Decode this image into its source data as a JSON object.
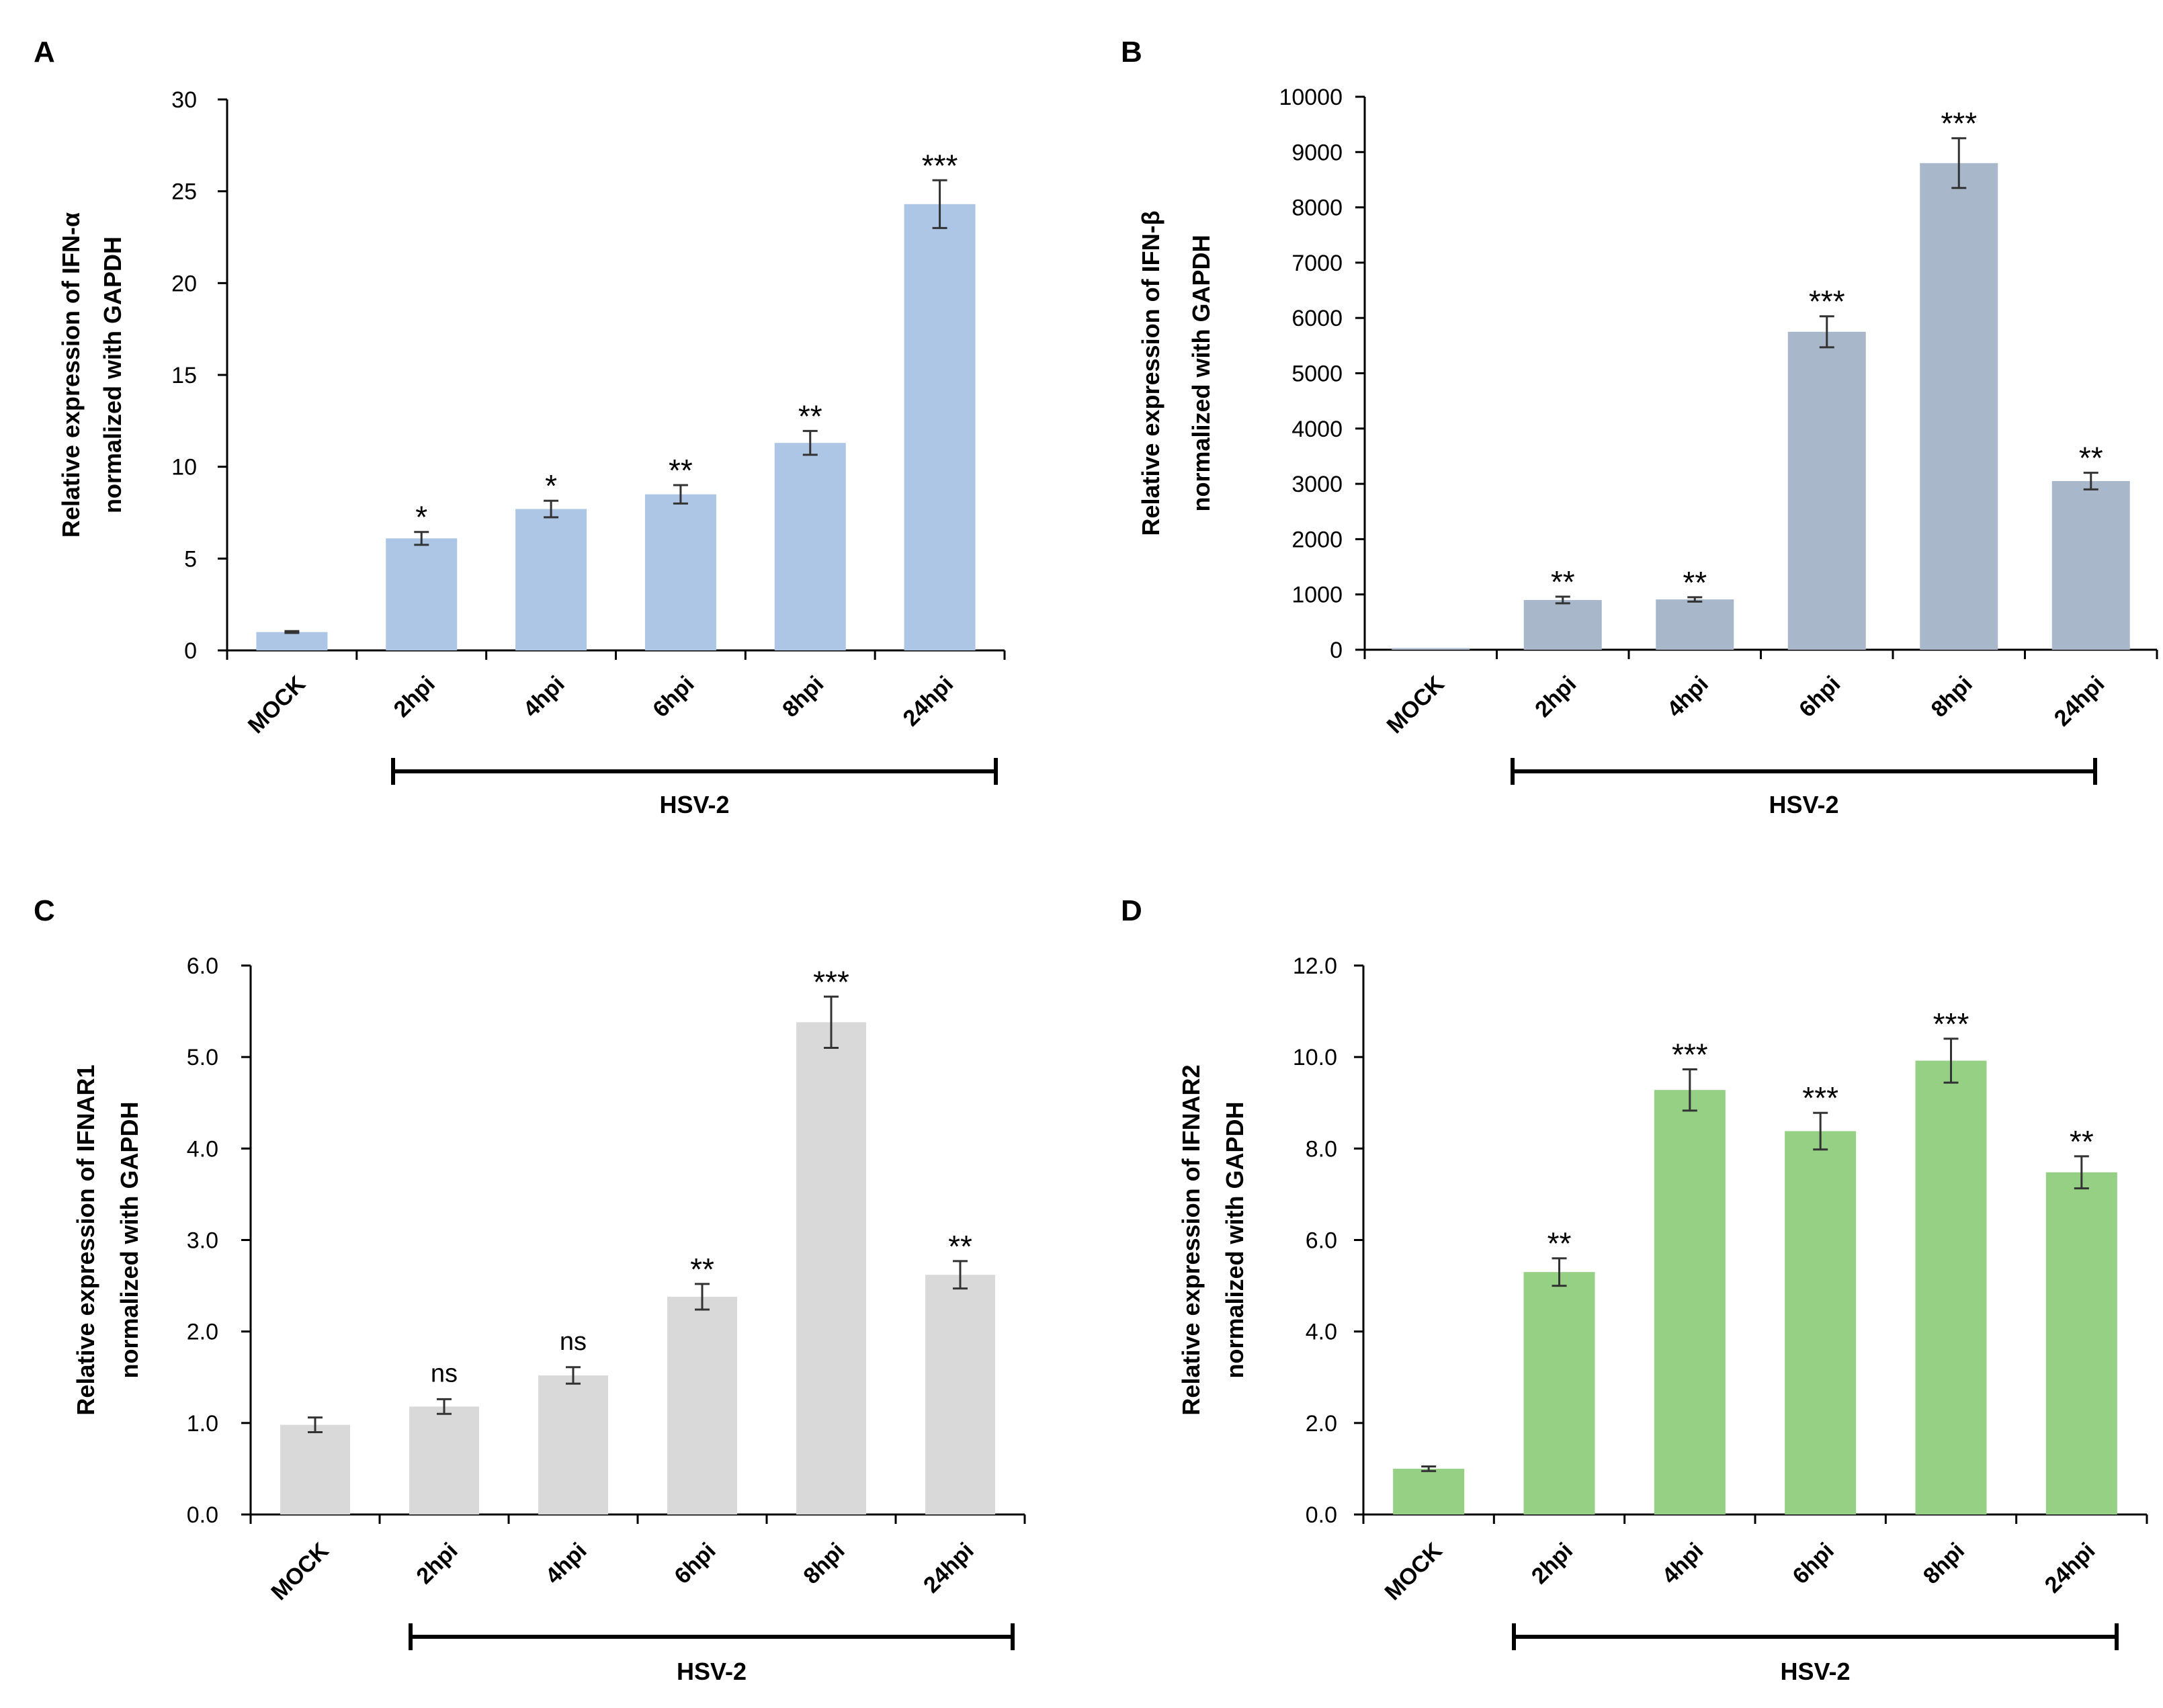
{
  "chart_data": [
    {
      "type": "bar",
      "panel": "A",
      "categories": [
        "MOCK",
        "2hpi",
        "4hpi",
        "6hpi",
        "8hpi",
        "24hpi"
      ],
      "values": [
        1.0,
        6.1,
        7.7,
        8.5,
        11.3,
        24.3
      ],
      "errors": [
        0.05,
        0.35,
        0.45,
        0.5,
        0.65,
        1.3
      ],
      "significance": [
        "",
        "*",
        "*",
        "**",
        "**",
        "***"
      ],
      "ylabel": [
        "Relative expression of IFN-α",
        "normalized with GAPDH"
      ],
      "ylim": [
        0,
        30
      ],
      "yticks": [
        0,
        5,
        10,
        15,
        20,
        25,
        30
      ],
      "ytick_labels": [
        "0",
        "5",
        "10",
        "15",
        "20",
        "25",
        "30"
      ],
      "group_label": "HSV-2",
      "bar_color": "#adc6e6"
    },
    {
      "type": "bar",
      "panel": "B",
      "categories": [
        "MOCK",
        "2hpi",
        "4hpi",
        "6hpi",
        "8hpi",
        "24hpi"
      ],
      "values": [
        30,
        900,
        910,
        5750,
        8800,
        3050
      ],
      "errors": [
        0,
        60,
        40,
        280,
        450,
        150
      ],
      "significance": [
        "",
        "**",
        "**",
        "***",
        "***",
        "**"
      ],
      "ylabel": [
        "Relative expression of IFN-β",
        "normalized with GAPDH"
      ],
      "ylim": [
        0,
        10000
      ],
      "yticks": [
        0,
        1000,
        2000,
        3000,
        4000,
        5000,
        6000,
        7000,
        8000,
        9000,
        10000
      ],
      "ytick_labels": [
        "0",
        "1000",
        "2000",
        "3000",
        "4000",
        "5000",
        "6000",
        "7000",
        "8000",
        "9000",
        "10000"
      ],
      "group_label": "HSV-2",
      "bar_color": "#a8b8ca"
    },
    {
      "type": "bar",
      "panel": "C",
      "categories": [
        "MOCK",
        "2hpi",
        "4hpi",
        "6hpi",
        "8hpi",
        "24hpi"
      ],
      "values": [
        0.98,
        1.18,
        1.52,
        2.38,
        5.38,
        2.62
      ],
      "errors": [
        0.08,
        0.08,
        0.09,
        0.14,
        0.28,
        0.15
      ],
      "significance": [
        "",
        "ns",
        "ns",
        "**",
        "***",
        "**"
      ],
      "ylabel": [
        "Relative expression of IFNAR1",
        "normalized with GAPDH"
      ],
      "ylim": [
        0,
        6
      ],
      "yticks": [
        0,
        1,
        2,
        3,
        4,
        5,
        6
      ],
      "ytick_labels": [
        "0.0",
        "1.0",
        "2.0",
        "3.0",
        "4.0",
        "5.0",
        "6.0"
      ],
      "group_label": "HSV-2",
      "bar_color": "#d9d9d9"
    },
    {
      "type": "bar",
      "panel": "D",
      "categories": [
        "MOCK",
        "2hpi",
        "4hpi",
        "6hpi",
        "8hpi",
        "24hpi"
      ],
      "values": [
        1.0,
        5.3,
        9.28,
        8.38,
        9.92,
        7.48
      ],
      "errors": [
        0.05,
        0.3,
        0.45,
        0.4,
        0.48,
        0.35
      ],
      "significance": [
        "",
        "**",
        "***",
        "***",
        "***",
        "**"
      ],
      "ylabel": [
        "Relative expression of IFNAR2",
        "normalized with GAPDH"
      ],
      "ylim": [
        0,
        12
      ],
      "yticks": [
        0,
        2,
        4,
        6,
        8,
        10,
        12
      ],
      "ytick_labels": [
        "0.0",
        "2.0",
        "4.0",
        "6.0",
        "8.0",
        "10.0",
        "12.0"
      ],
      "group_label": "HSV-2",
      "bar_color": "#95d085"
    }
  ]
}
